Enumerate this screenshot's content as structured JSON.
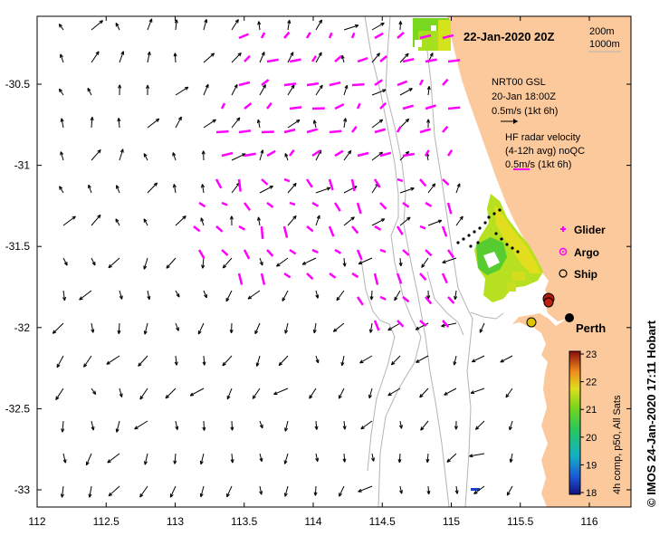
{
  "map": {
    "title": "22-Jan-2020 20Z",
    "depth_contours": [
      "200m",
      "1000m"
    ],
    "gsl_legend": [
      "NRT00 GSL",
      "20-Jan 18:00Z",
      "0.5m/s (1kt 6h)"
    ],
    "hf_legend": [
      "HF radar velocity",
      "(4-12h avg) noQC",
      "0.5m/s (1kt 6h)"
    ],
    "symbols": [
      {
        "label": "Glider",
        "symbol": "plus-icon",
        "color": "#ff00ff"
      },
      {
        "label": "Argo",
        "symbol": "circle-dot-icon",
        "color": "#ff00ff"
      },
      {
        "label": "Ship",
        "symbol": "open-circle-icon",
        "color": "#000000"
      }
    ],
    "place_label": "Perth",
    "colorbar": {
      "ticks": [
        "23",
        "22",
        "21",
        "20",
        "19",
        "18"
      ],
      "label": "4h comp, p50, All Sats"
    },
    "x_ticks": [
      "112",
      "112.5",
      "113",
      "113.5",
      "114",
      "114.5",
      "115",
      "115.5",
      "116"
    ],
    "y_ticks": [
      "-30.5",
      "-31",
      "-31.5",
      "-32",
      "-32.5",
      "-33"
    ],
    "credit": "© IMOS 24-Jan-2020 17:11 Hobart",
    "colors": {
      "land": "#fcc99c",
      "hf_arrow": "#ff00ff",
      "model_arrow": "#000000",
      "contour": "#b4b4b4"
    }
  }
}
